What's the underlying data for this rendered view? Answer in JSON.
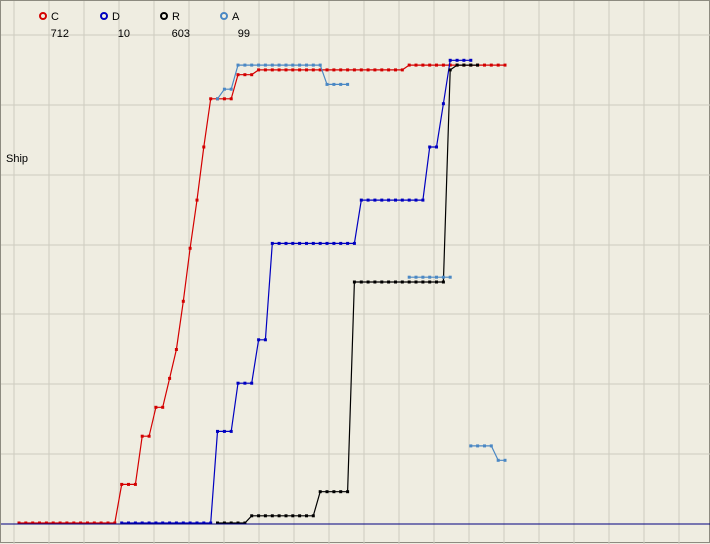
{
  "chart_data": {
    "type": "line",
    "title": "",
    "xlabel": "",
    "ylabel": "Ship",
    "grid": true,
    "legend_position": "top-left",
    "colors": {
      "background": "#efede1",
      "grid": "#cdcbbf",
      "baseline": "#000080"
    },
    "x": [
      0,
      1,
      2,
      3,
      4,
      5,
      6,
      7,
      8,
      9,
      10,
      11,
      12,
      13,
      14,
      15,
      16,
      17,
      18,
      19,
      20,
      21,
      22,
      23,
      24,
      25,
      26,
      27,
      28,
      29,
      30,
      31,
      32,
      33,
      34,
      35,
      36,
      37,
      38,
      39,
      40,
      41,
      42,
      43,
      44,
      45,
      46,
      47,
      48,
      49,
      50,
      51,
      52,
      53,
      54,
      55,
      56,
      57,
      58,
      59,
      60,
      61,
      62,
      63,
      64,
      65,
      66,
      67,
      68,
      69,
      70,
      71
    ],
    "ylim": [
      0,
      100
    ],
    "series": [
      {
        "name": "C",
        "value": "712",
        "color": "#d40000",
        "values": [
          0,
          0,
          0,
          0,
          0,
          0,
          0,
          0,
          0,
          0,
          0,
          0,
          0,
          0,
          0,
          8,
          8,
          8,
          18,
          18,
          24,
          24,
          30,
          36,
          46,
          57,
          67,
          78,
          88,
          88,
          88,
          88,
          93,
          93,
          93,
          94,
          94,
          94,
          94,
          94,
          94,
          94,
          94,
          94,
          94,
          94,
          94,
          94,
          94,
          94,
          94,
          94,
          94,
          94,
          94,
          94,
          94,
          95,
          95,
          95,
          95,
          95,
          95,
          95,
          95,
          95,
          95,
          95,
          95,
          95,
          95,
          95
        ]
      },
      {
        "name": "D",
        "value": "10",
        "color": "#0000c0",
        "values": [
          null,
          null,
          null,
          null,
          null,
          null,
          null,
          null,
          null,
          null,
          null,
          null,
          null,
          null,
          null,
          0,
          0,
          0,
          0,
          0,
          0,
          0,
          0,
          0,
          0,
          0,
          0,
          0,
          0,
          19,
          19,
          19,
          29,
          29,
          29,
          38,
          38,
          58,
          58,
          58,
          58,
          58,
          58,
          58,
          58,
          58,
          58,
          58,
          58,
          58,
          67,
          67,
          67,
          67,
          67,
          67,
          67,
          67,
          67,
          67,
          78,
          78,
          87,
          96,
          96,
          96,
          96,
          null,
          null,
          null,
          null,
          null
        ]
      },
      {
        "name": "R",
        "value": "603",
        "color": "#000000",
        "values": [
          null,
          null,
          null,
          null,
          null,
          null,
          null,
          null,
          null,
          null,
          null,
          null,
          null,
          null,
          null,
          null,
          null,
          null,
          null,
          null,
          null,
          null,
          null,
          null,
          null,
          null,
          null,
          null,
          null,
          0,
          0,
          0,
          0,
          0,
          1.5,
          1.5,
          1.5,
          1.5,
          1.5,
          1.5,
          1.5,
          1.5,
          1.5,
          1.5,
          6.5,
          6.5,
          6.5,
          6.5,
          6.5,
          50,
          50,
          50,
          50,
          50,
          50,
          50,
          50,
          50,
          50,
          50,
          50,
          50,
          50,
          94,
          95,
          95,
          95,
          95,
          null,
          null,
          null,
          null
        ]
      },
      {
        "name": "A",
        "value": "99",
        "color": "#4b88c4",
        "values": [
          null,
          null,
          null,
          null,
          null,
          null,
          null,
          null,
          null,
          null,
          null,
          null,
          null,
          null,
          null,
          null,
          null,
          null,
          null,
          null,
          null,
          null,
          null,
          null,
          null,
          null,
          null,
          null,
          null,
          88,
          90,
          90,
          95,
          95,
          95,
          95,
          95,
          95,
          95,
          95,
          95,
          95,
          95,
          95,
          95,
          91,
          91,
          91,
          91,
          null,
          null,
          null,
          null,
          null,
          null,
          null,
          null,
          51,
          51,
          51,
          51,
          51,
          51,
          51,
          null,
          null,
          16,
          16,
          16,
          16,
          13,
          13
        ]
      }
    ],
    "visual_x_positions_note": "",
    "overlay_points": {}
  }
}
